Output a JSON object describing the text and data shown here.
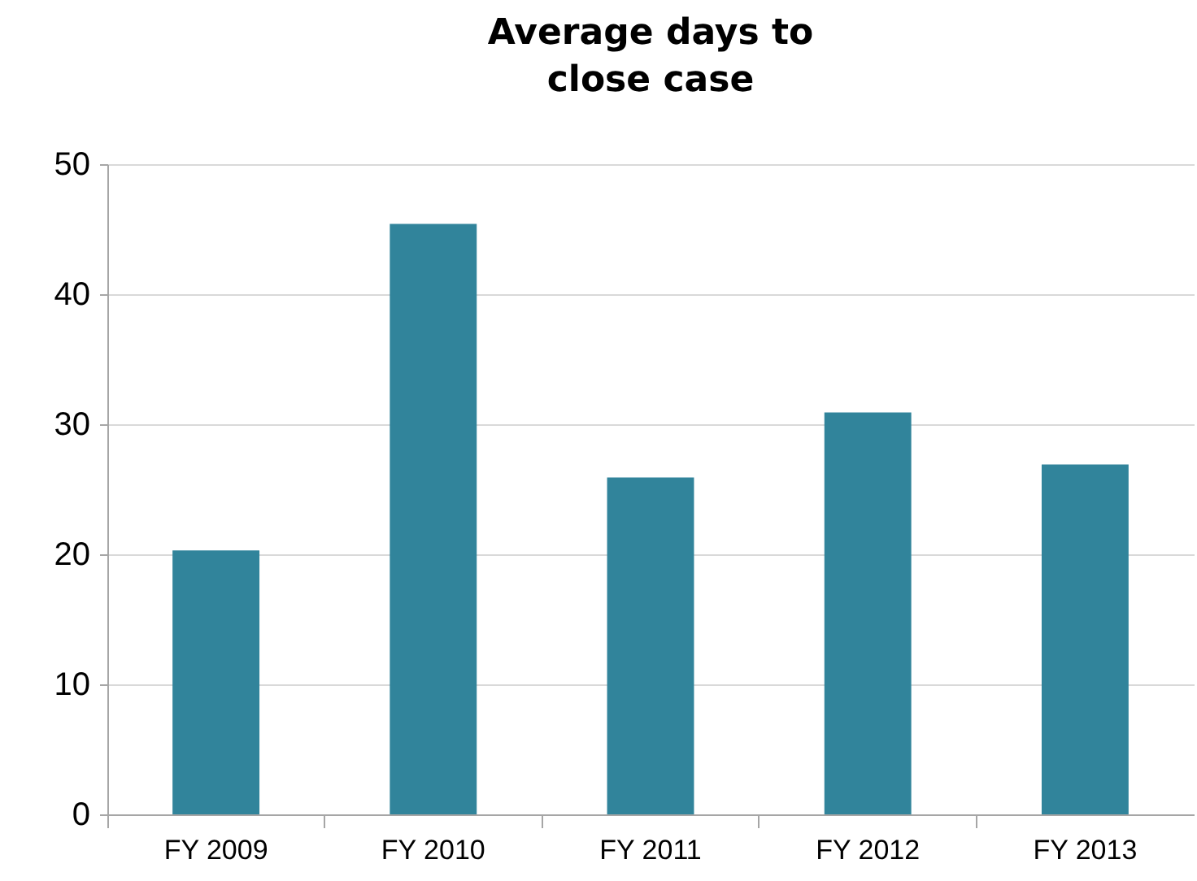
{
  "chart_data": {
    "type": "bar",
    "title": "Average days to\nclose case",
    "categories": [
      "FY 2009",
      "FY 2010",
      "FY 2011",
      "FY 2012",
      "FY 2013"
    ],
    "values": [
      20.3,
      45.4,
      25.9,
      30.9,
      26.9
    ],
    "color": "#31849b",
    "ylim": [
      0,
      50
    ],
    "yticks": [
      0,
      10,
      20,
      30,
      40,
      50
    ],
    "grid": "y"
  }
}
